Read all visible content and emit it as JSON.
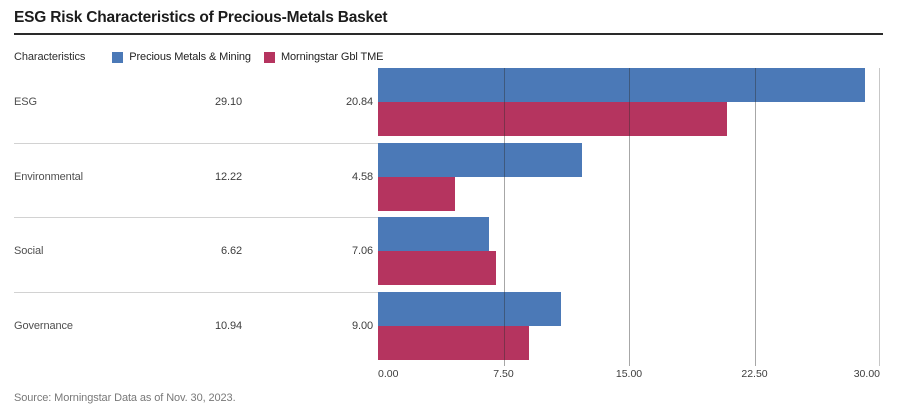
{
  "title": "ESG Risk Characteristics of Precious-Metals Basket",
  "header": {
    "characteristics_label": "Characteristics",
    "legend": [
      {
        "label": "Precious Metals & Mining",
        "color": "#4b79b7"
      },
      {
        "label": "Morningstar Gbl TME",
        "color": "#b5345f"
      }
    ]
  },
  "table": {
    "rows": [
      {
        "label": "ESG",
        "v1": "29.10",
        "v2": "20.84"
      },
      {
        "label": "Environmental",
        "v1": "12.22",
        "v2": "4.58"
      },
      {
        "label": "Social",
        "v1": "6.62",
        "v2": "7.06"
      },
      {
        "label": "Governance",
        "v1": "10.94",
        "v2": "9.00"
      }
    ]
  },
  "chart_data": {
    "type": "bar",
    "orientation": "horizontal",
    "title": "ESG Risk Characteristics of Precious-Metals Basket",
    "categories": [
      "ESG",
      "Environmental",
      "Social",
      "Governance"
    ],
    "series": [
      {
        "name": "Precious Metals & Mining",
        "color": "#4b79b7",
        "values": [
          29.1,
          12.22,
          6.62,
          10.94
        ]
      },
      {
        "name": "Morningstar Gbl TME",
        "color": "#b5345f",
        "values": [
          20.84,
          4.58,
          7.06,
          9.0
        ]
      }
    ],
    "xlim": [
      0,
      30
    ],
    "xticks": [
      "0.00",
      "7.50",
      "15.00",
      "22.50",
      "30.00"
    ],
    "grid": true,
    "legend_position": "top",
    "xlabel": "",
    "ylabel": ""
  },
  "source": "Source: Morningstar Data as of Nov. 30, 2023."
}
